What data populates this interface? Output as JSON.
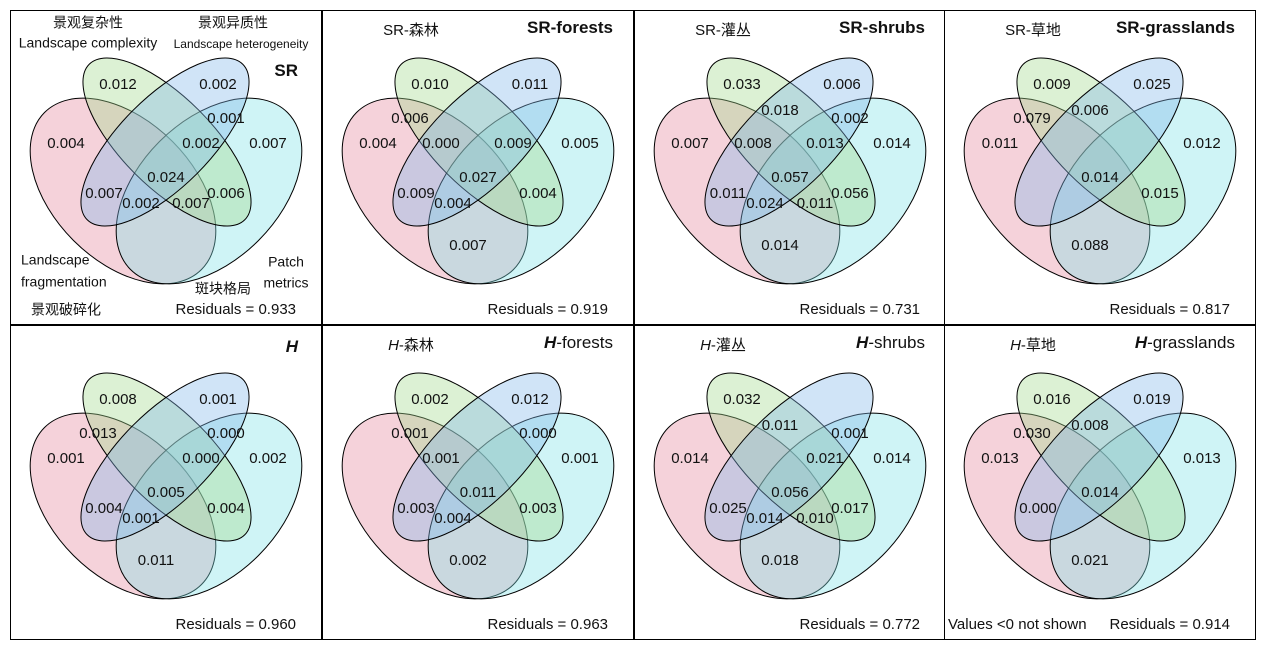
{
  "colors": {
    "fragmentation": "#e58a9f",
    "complexity": "#a3da8e",
    "heterogeneity": "#84b8ea",
    "patch": "#80e3e8"
  },
  "sets": {
    "complexity_cn": "景观复杂性",
    "complexity_en": "Landscape complexity",
    "heterogeneity_cn": "景观异质性",
    "heterogeneity_en": "Landscape heterogeneity",
    "fragmentation_en_1": "Landscape",
    "fragmentation_en_2": "fragmentation",
    "fragmentation_cn": "景观破碎化",
    "patch_cn": "斑块格局",
    "patch_en_1": "Patch",
    "patch_en_2": "metrics"
  },
  "note": "Values <0 not shown",
  "panels": [
    {
      "cn_var": "",
      "cn_rest": "",
      "en_var": "SR",
      "en_rest": "",
      "en_italic": false,
      "residuals": "Residuals = 0.933",
      "values": {
        "A": "0.004",
        "B": "0.012",
        "C": "0.002",
        "D": "0.007",
        "CD": "0.001",
        "BCx": "0.002",
        "center": "0.024",
        "LL": "0.007",
        "BL": "0.002",
        "BR": "0.007",
        "RR": "0.006"
      }
    },
    {
      "cn_var": "SR",
      "cn_rest": "-森林",
      "en_var": "SR",
      "en_rest": "-forests",
      "en_italic": false,
      "residuals": "Residuals = 0.919",
      "values": {
        "A": "0.004",
        "B": "0.010",
        "C": "0.011",
        "D": "0.005",
        "AB": "0.006",
        "ABx": "0.000",
        "BCx": "0.009",
        "center": "0.027",
        "LL": "0.009",
        "BL": "0.004",
        "RR": "0.004",
        "bottom": "0.007"
      }
    },
    {
      "cn_var": "SR",
      "cn_rest": "-灌丛",
      "en_var": "SR",
      "en_rest": "-shrubs",
      "en_italic": false,
      "residuals": "Residuals = 0.731",
      "values": {
        "A": "0.007",
        "B": "0.033",
        "C": "0.006",
        "D": "0.014",
        "BC": "0.018",
        "CD": "0.002",
        "ABx": "0.008",
        "BCx": "0.013",
        "center": "0.057",
        "LL": "0.011",
        "BL": "0.024",
        "BR": "0.011",
        "RR": "0.056",
        "bottom": "0.014"
      }
    },
    {
      "cn_var": "SR",
      "cn_rest": "-草地",
      "en_var": "SR",
      "en_rest": "-grasslands",
      "en_italic": false,
      "residuals": "Residuals = 0.817",
      "values": {
        "A": "0.011",
        "B": "0.009",
        "C": "0.025",
        "D": "0.012",
        "AB": "0.079",
        "BC": "0.006",
        "center": "0.014",
        "RR": "0.015",
        "bottom": "0.088"
      }
    },
    {
      "cn_var": "",
      "cn_rest": "",
      "en_var": "H",
      "en_rest": "",
      "en_italic": true,
      "residuals": "Residuals = 0.960",
      "values": {
        "A": "0.001",
        "B": "0.008",
        "C": "0.001",
        "D": "0.002",
        "AB": "0.013",
        "CD": "0.000",
        "BCx": "0.000",
        "center": "0.005",
        "LL": "0.004",
        "BL": "0.001",
        "RR": "0.004",
        "bottom": "0.011"
      }
    },
    {
      "cn_var": "H",
      "cn_rest": "-森林",
      "en_var": "H",
      "en_rest": "-forests",
      "en_italic": true,
      "residuals": "Residuals = 0.963",
      "values": {
        "B": "0.002",
        "C": "0.012",
        "D": "0.001",
        "AB": "0.001",
        "CD": "0.000",
        "ABx": "0.001",
        "center": "0.011",
        "LL": "0.003",
        "BL": "0.004",
        "RR": "0.003",
        "bottom": "0.002"
      }
    },
    {
      "cn_var": "H",
      "cn_rest": "-灌丛",
      "en_var": "H",
      "en_rest": "-shrubs",
      "en_italic": true,
      "residuals": "Residuals = 0.772",
      "values": {
        "A": "0.014",
        "B": "0.032",
        "D": "0.014",
        "BC": "0.011",
        "CD": "0.001",
        "BCx": "0.021",
        "center": "0.056",
        "LL": "0.025",
        "BL": "0.014",
        "BR": "0.010",
        "RR": "0.017",
        "bottom": "0.018"
      }
    },
    {
      "cn_var": "H",
      "cn_rest": "-草地",
      "en_var": "H",
      "en_rest": "-grasslands",
      "en_italic": true,
      "residuals": "Residuals = 0.914",
      "values": {
        "A": "0.013",
        "B": "0.016",
        "C": "0.019",
        "D": "0.013",
        "AB": "0.030",
        "BC": "0.008",
        "center": "0.014",
        "LL": "0.000",
        "bottom": "0.021"
      }
    }
  ]
}
